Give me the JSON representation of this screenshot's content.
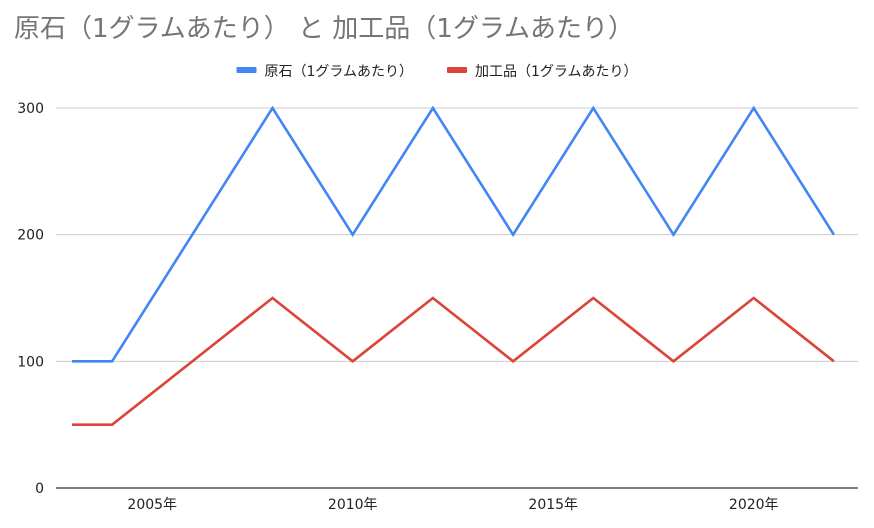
{
  "chart_data": {
    "type": "line",
    "title": "原石（1グラムあたり） と 加工品（1グラムあたり）",
    "x": [
      2003,
      2004,
      2008,
      2010,
      2012,
      2014,
      2016,
      2018,
      2020,
      2022
    ],
    "series": [
      {
        "name": "原石（1グラムあたり）",
        "color": "#4285f4",
        "values": [
          100,
          100,
          300,
          200,
          300,
          200,
          300,
          200,
          300,
          200
        ]
      },
      {
        "name": "加工品（1グラムあたり）",
        "color": "#db4437",
        "values": [
          50,
          50,
          150,
          100,
          150,
          100,
          150,
          100,
          150,
          100
        ]
      }
    ],
    "x_ticks": [
      2005,
      2010,
      2015,
      2020
    ],
    "x_tick_labels": [
      "2005年",
      "2010年",
      "2015年",
      "2020年"
    ],
    "xlim": [
      2002.6,
      2022.6
    ],
    "y_ticks": [
      0,
      100,
      200,
      300
    ],
    "y_tick_labels": [
      "0",
      "100",
      "200",
      "300"
    ],
    "ylim": [
      0,
      300
    ],
    "xlabel": "",
    "ylabel": "",
    "grid": true,
    "legend_position": "top"
  }
}
